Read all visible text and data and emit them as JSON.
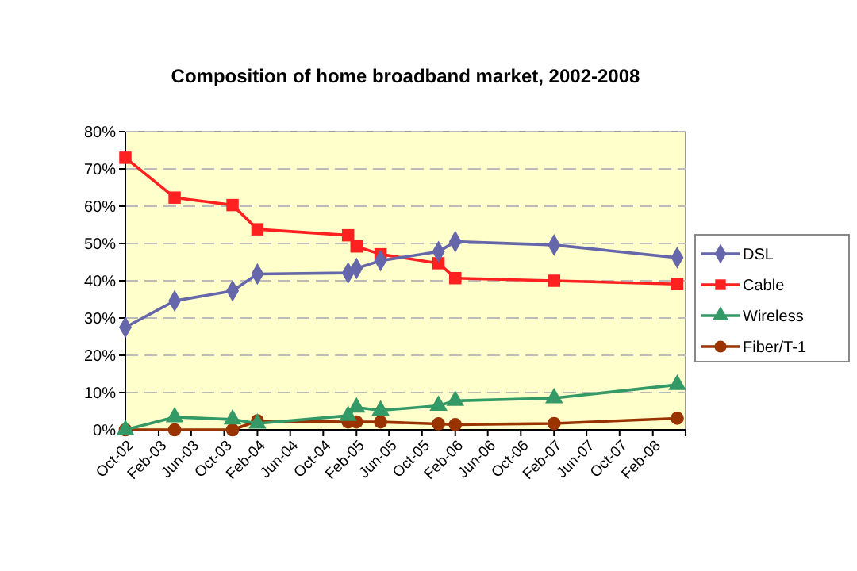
{
  "chart_data": {
    "type": "line",
    "title": "Composition of home broadband market, 2002-2008",
    "x": [
      "2002-10-01",
      "2003-04-01",
      "2003-11-01",
      "2004-02-01",
      "2005-01-01",
      "2005-02-01",
      "2005-05-01",
      "2005-12-01",
      "2006-02-01",
      "2007-02-01",
      "2008-05-01"
    ],
    "xlim": [
      "2002-10-01",
      "2008-06-01"
    ],
    "xticks": [
      {
        "value": "2002-10-01",
        "label": "Oct-02"
      },
      {
        "value": "2003-02-01",
        "label": "Feb-03"
      },
      {
        "value": "2003-06-01",
        "label": "Jun-03"
      },
      {
        "value": "2003-10-01",
        "label": "Oct-03"
      },
      {
        "value": "2004-02-01",
        "label": "Feb-04"
      },
      {
        "value": "2004-06-01",
        "label": "Jun-04"
      },
      {
        "value": "2004-10-01",
        "label": "Oct-04"
      },
      {
        "value": "2005-02-01",
        "label": "Feb-05"
      },
      {
        "value": "2005-06-01",
        "label": "Jun-05"
      },
      {
        "value": "2005-10-01",
        "label": "Oct-05"
      },
      {
        "value": "2006-02-01",
        "label": "Feb-06"
      },
      {
        "value": "2006-06-01",
        "label": "Jun-06"
      },
      {
        "value": "2006-10-01",
        "label": "Oct-06"
      },
      {
        "value": "2007-02-01",
        "label": "Feb-07"
      },
      {
        "value": "2007-06-01",
        "label": "Jun-07"
      },
      {
        "value": "2007-10-01",
        "label": "Oct-07"
      },
      {
        "value": "2008-02-01",
        "label": "Feb-08"
      },
      {
        "value": "2008-06-01",
        "label": null
      }
    ],
    "ylim": [
      0,
      80
    ],
    "yticks": [
      {
        "value": 0,
        "label": "0%"
      },
      {
        "value": 10,
        "label": "10%"
      },
      {
        "value": 20,
        "label": "20%"
      },
      {
        "value": 30,
        "label": "30%"
      },
      {
        "value": 40,
        "label": "40%"
      },
      {
        "value": 50,
        "label": "50%"
      },
      {
        "value": 60,
        "label": "60%"
      },
      {
        "value": 70,
        "label": "70%"
      },
      {
        "value": 80,
        "label": "80%"
      }
    ],
    "grid": "y",
    "legend": "right",
    "line_style": "solid",
    "series": [
      {
        "name": "DSL",
        "color": "#6666aa",
        "marker": "diamond",
        "values": [
          27.5,
          34.6,
          37.3,
          41.8,
          42.1,
          43.3,
          45.4,
          47.8,
          50.5,
          49.6,
          46.2
        ]
      },
      {
        "name": "Cable",
        "color": "#ff2020",
        "marker": "square",
        "values": [
          73,
          62.3,
          60.3,
          53.8,
          52.2,
          49.2,
          47.1,
          44.7,
          40.7,
          40.0,
          39.1
        ]
      },
      {
        "name": "Wireless",
        "color": "#339966",
        "marker": "triangle",
        "values": [
          0,
          3.4,
          2.8,
          1.7,
          3.8,
          6.0,
          5.2,
          6.5,
          7.8,
          8.5,
          12.1
        ]
      },
      {
        "name": "Fiber/T-1",
        "color": "#993300",
        "marker": "circle",
        "values": [
          0,
          0,
          0,
          2.4,
          2.1,
          2.1,
          2.1,
          1.6,
          1.4,
          1.7,
          3.1
        ]
      }
    ]
  }
}
